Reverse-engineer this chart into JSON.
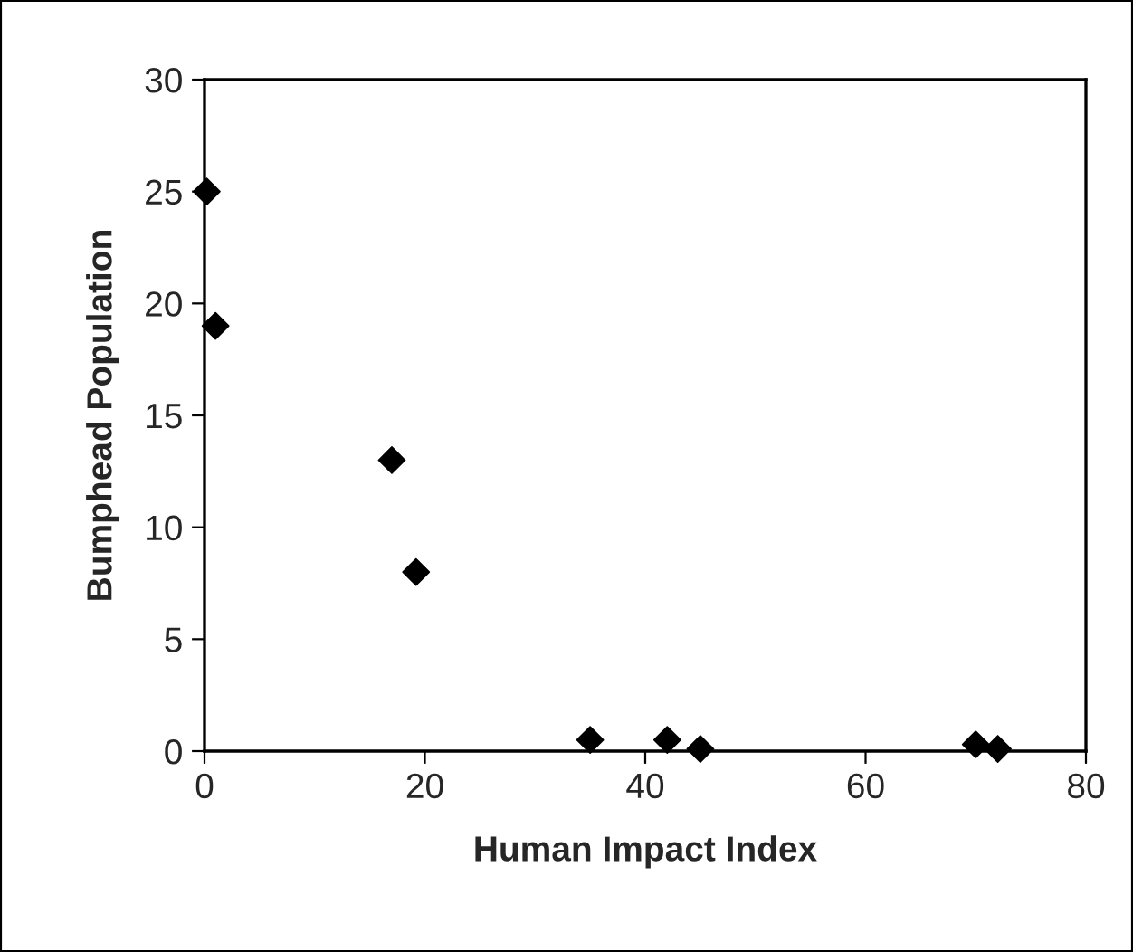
{
  "chart_data": {
    "type": "scatter",
    "xlabel": "Human Impact Index",
    "ylabel": "Bumphead Population",
    "x": [
      0.2,
      1,
      17,
      19.2,
      35,
      42,
      45,
      70,
      72
    ],
    "values": [
      25,
      19,
      13,
      8,
      0.5,
      0.5,
      0.1,
      0.3,
      0.1
    ],
    "color": "#000000",
    "marker": "diamond",
    "xlim": [
      0,
      80
    ],
    "xticks": [
      0,
      20,
      40,
      60,
      80
    ],
    "ylim": [
      0,
      30
    ],
    "yticks": [
      0,
      5,
      10,
      15,
      20,
      25,
      30
    ],
    "grid": false,
    "legend": false
  }
}
